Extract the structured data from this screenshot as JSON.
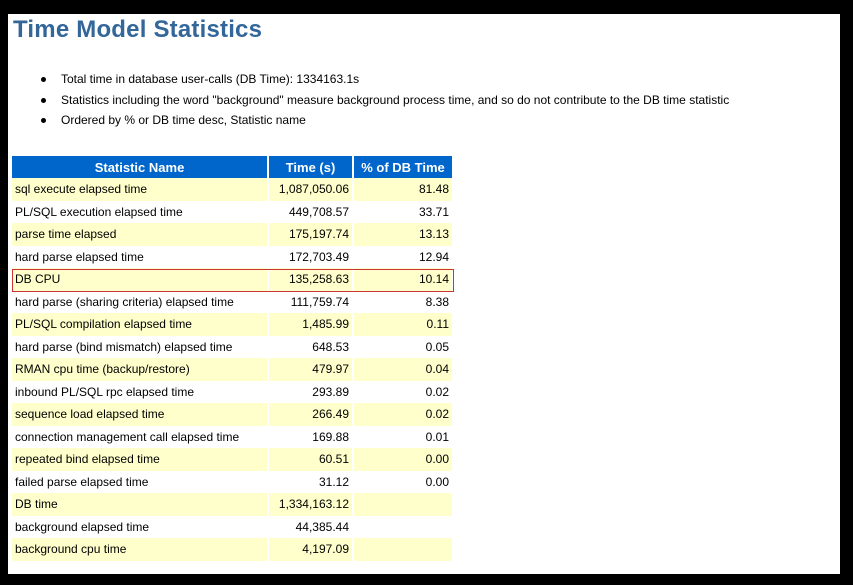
{
  "page_title": "Time Model Statistics",
  "notes": [
    "Total time in database user-calls (DB Time): 1334163.1s",
    "Statistics including the word \"background\" measure background process time, and so do not contribute to the DB time statistic",
    "Ordered by % or DB time desc, Statistic name"
  ],
  "table": {
    "headers": [
      "Statistic Name",
      "Time (s)",
      "% of DB Time"
    ],
    "rows": [
      [
        "sql execute elapsed time",
        "1,087,050.06",
        "81.48"
      ],
      [
        "PL/SQL execution elapsed time",
        "449,708.57",
        "33.71"
      ],
      [
        "parse time elapsed",
        "175,197.74",
        "13.13"
      ],
      [
        "hard parse elapsed time",
        "172,703.49",
        "12.94"
      ],
      [
        "DB CPU",
        "135,258.63",
        "10.14"
      ],
      [
        "hard parse (sharing criteria) elapsed time",
        "111,759.74",
        "8.38"
      ],
      [
        "PL/SQL compilation elapsed time",
        "1,485.99",
        "0.11"
      ],
      [
        "hard parse (bind mismatch) elapsed time",
        "648.53",
        "0.05"
      ],
      [
        "RMAN cpu time (backup/restore)",
        "479.97",
        "0.04"
      ],
      [
        "inbound PL/SQL rpc elapsed time",
        "293.89",
        "0.02"
      ],
      [
        "sequence load elapsed time",
        "266.49",
        "0.02"
      ],
      [
        "connection management call elapsed time",
        "169.88",
        "0.01"
      ],
      [
        "repeated bind elapsed time",
        "60.51",
        "0.00"
      ],
      [
        "failed parse elapsed time",
        "31.12",
        "0.00"
      ],
      [
        "DB time",
        "1,334,163.12",
        ""
      ],
      [
        "background elapsed time",
        "44,385.44",
        ""
      ],
      [
        "background cpu time",
        "4,197.09",
        ""
      ]
    ]
  },
  "colors": {
    "title": "#336699",
    "header_bg": "#0066cc",
    "row_odd": "#ffffcc",
    "row_even": "#ffffff",
    "highlight_border": "#cc3333"
  }
}
